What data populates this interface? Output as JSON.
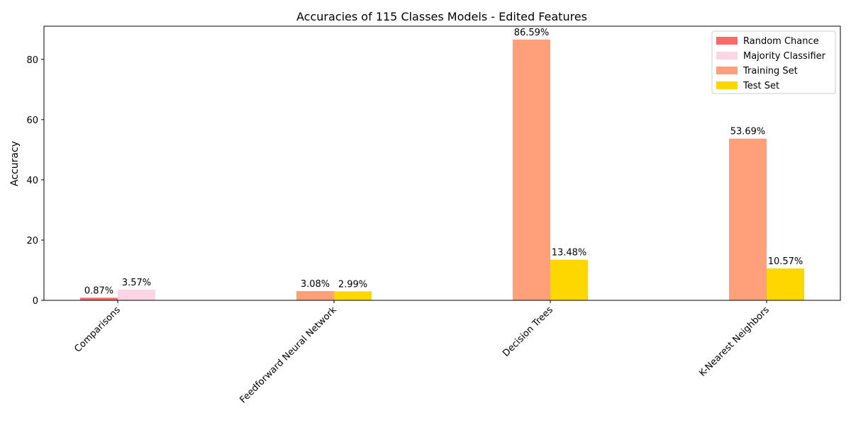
{
  "chart_data": {
    "type": "bar",
    "title": "Accuracies of 115 Classes Models - Edited Features",
    "xlabel": "",
    "ylabel": "Accuracy",
    "ylim": [
      0,
      91
    ],
    "yticks": [
      0,
      20,
      40,
      60,
      80
    ],
    "grid": false,
    "legend_position": "top-right",
    "categories": [
      "Comparisons",
      "Feedforward Neural Network",
      "Decision Trees",
      "K-Nearest Neighbors"
    ],
    "series": [
      {
        "name": "Random Chance",
        "color": "#f86b6b",
        "values": [
          0.87,
          null,
          null,
          null
        ],
        "labels": [
          "0.87%",
          null,
          null,
          null
        ]
      },
      {
        "name": "Majority Classifier",
        "color": "#fcd5e5",
        "values": [
          3.57,
          null,
          null,
          null
        ],
        "labels": [
          "3.57%",
          null,
          null,
          null
        ]
      },
      {
        "name": "Training Set",
        "color": "#ffa07a",
        "values": [
          null,
          3.08,
          86.59,
          53.69
        ],
        "labels": [
          null,
          "3.08%",
          "86.59%",
          "53.69%"
        ]
      },
      {
        "name": "Test Set",
        "color": "#ffd700",
        "values": [
          null,
          2.99,
          13.48,
          10.57
        ],
        "labels": [
          null,
          "2.99%",
          "13.48%",
          "10.57%"
        ]
      }
    ]
  }
}
